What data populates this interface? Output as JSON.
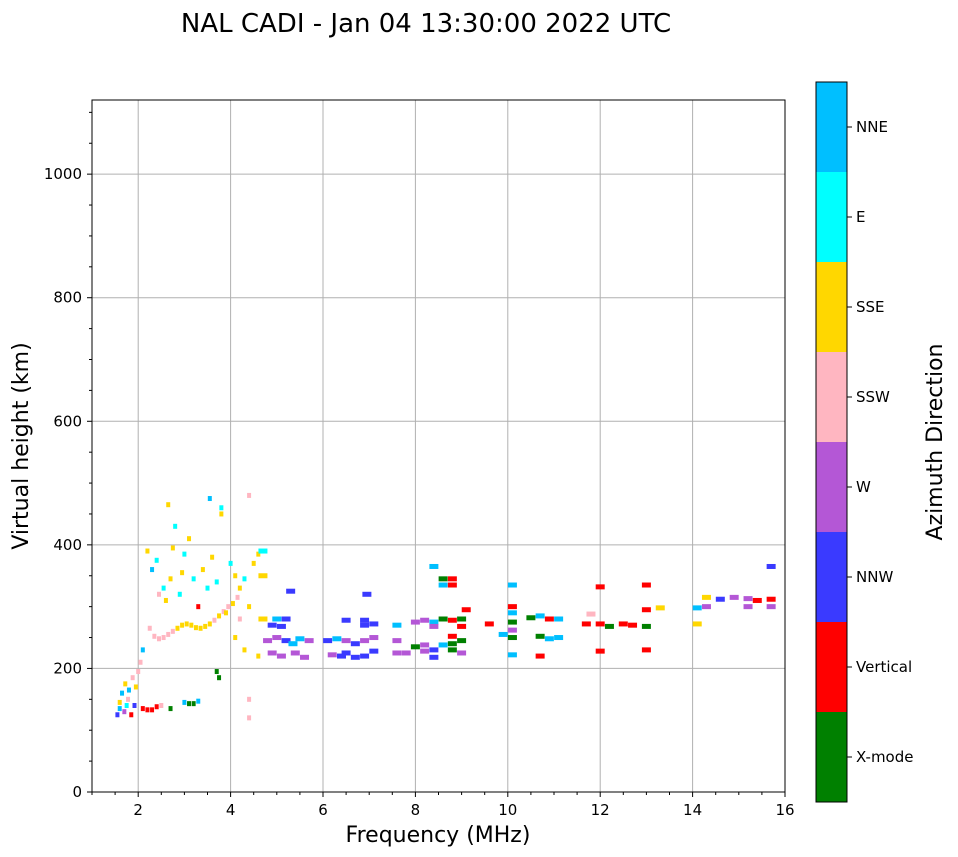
{
  "chart_data": {
    "type": "scatter",
    "title": "NAL CADI - Jan 04 13:30:00 2022 UTC",
    "xlabel": "Frequency (MHz)",
    "ylabel": "Virtual height (km)",
    "xlim": [
      1,
      16
    ],
    "ylim": [
      0,
      1120
    ],
    "xticks": [
      2,
      4,
      6,
      8,
      10,
      12,
      14,
      16
    ],
    "yticks": [
      0,
      200,
      400,
      600,
      800,
      1000
    ],
    "grid": true,
    "colorbar": {
      "label": "Azimuth Direction",
      "categories": [
        {
          "name": "X-mode",
          "color": "#008000"
        },
        {
          "name": "Vertical",
          "color": "#ff0000"
        },
        {
          "name": "NNW",
          "color": "#3a3aff"
        },
        {
          "name": "W",
          "color": "#b457d6"
        },
        {
          "name": "SSW",
          "color": "#ffb6c1"
        },
        {
          "name": "SSE",
          "color": "#ffd700"
        },
        {
          "name": "E",
          "color": "#00ffff"
        },
        {
          "name": "NNE",
          "color": "#00bfff"
        }
      ]
    },
    "points": [
      {
        "f": 1.55,
        "h": 125,
        "c": "NNW"
      },
      {
        "f": 1.6,
        "h": 145,
        "c": "SSE"
      },
      {
        "f": 1.65,
        "h": 160,
        "c": "NNE"
      },
      {
        "f": 1.7,
        "h": 130,
        "c": "W"
      },
      {
        "f": 1.72,
        "h": 175,
        "c": "SSE"
      },
      {
        "f": 1.78,
        "h": 150,
        "c": "SSW"
      },
      {
        "f": 1.8,
        "h": 165,
        "c": "NNE"
      },
      {
        "f": 1.85,
        "h": 125,
        "c": "Vertical"
      },
      {
        "f": 1.88,
        "h": 185,
        "c": "SSW"
      },
      {
        "f": 1.92,
        "h": 140,
        "c": "NNW"
      },
      {
        "f": 1.95,
        "h": 170,
        "c": "SSE"
      },
      {
        "f": 2.0,
        "h": 195,
        "c": "SSW"
      },
      {
        "f": 2.05,
        "h": 210,
        "c": "SSW"
      },
      {
        "f": 2.1,
        "h": 230,
        "c": "NNE"
      },
      {
        "f": 1.6,
        "h": 135,
        "c": "NNE"
      },
      {
        "f": 1.75,
        "h": 140,
        "c": "E"
      },
      {
        "f": 2.1,
        "h": 135,
        "c": "Vertical"
      },
      {
        "f": 2.2,
        "h": 133,
        "c": "Vertical"
      },
      {
        "f": 2.3,
        "h": 133,
        "c": "Vertical"
      },
      {
        "f": 2.4,
        "h": 138,
        "c": "Vertical"
      },
      {
        "f": 2.5,
        "h": 140,
        "c": "SSW"
      },
      {
        "f": 2.7,
        "h": 135,
        "c": "X-mode"
      },
      {
        "f": 3.0,
        "h": 145,
        "c": "NNE"
      },
      {
        "f": 3.1,
        "h": 143,
        "c": "X-mode"
      },
      {
        "f": 3.2,
        "h": 143,
        "c": "X-mode"
      },
      {
        "f": 3.3,
        "h": 147,
        "c": "NNE"
      },
      {
        "f": 3.7,
        "h": 195,
        "c": "X-mode"
      },
      {
        "f": 3.75,
        "h": 185,
        "c": "X-mode"
      },
      {
        "f": 2.25,
        "h": 265,
        "c": "SSW"
      },
      {
        "f": 2.35,
        "h": 252,
        "c": "SSW"
      },
      {
        "f": 2.45,
        "h": 248,
        "c": "SSW"
      },
      {
        "f": 2.55,
        "h": 250,
        "c": "SSW"
      },
      {
        "f": 2.65,
        "h": 255,
        "c": "SSW"
      },
      {
        "f": 2.75,
        "h": 260,
        "c": "SSW"
      },
      {
        "f": 2.85,
        "h": 265,
        "c": "SSE"
      },
      {
        "f": 2.95,
        "h": 270,
        "c": "SSE"
      },
      {
        "f": 3.05,
        "h": 272,
        "c": "SSE"
      },
      {
        "f": 3.15,
        "h": 270,
        "c": "SSE"
      },
      {
        "f": 3.25,
        "h": 266,
        "c": "SSE"
      },
      {
        "f": 3.35,
        "h": 265,
        "c": "SSE"
      },
      {
        "f": 3.45,
        "h": 268,
        "c": "SSE"
      },
      {
        "f": 3.55,
        "h": 272,
        "c": "SSE"
      },
      {
        "f": 3.65,
        "h": 278,
        "c": "SSW"
      },
      {
        "f": 3.75,
        "h": 285,
        "c": "SSE"
      },
      {
        "f": 3.85,
        "h": 292,
        "c": "SSW"
      },
      {
        "f": 3.95,
        "h": 300,
        "c": "SSW"
      },
      {
        "f": 4.05,
        "h": 305,
        "c": "SSE"
      },
      {
        "f": 4.15,
        "h": 315,
        "c": "SSW"
      },
      {
        "f": 4.2,
        "h": 330,
        "c": "SSE"
      },
      {
        "f": 4.3,
        "h": 345,
        "c": "E"
      },
      {
        "f": 2.2,
        "h": 390,
        "c": "SSE"
      },
      {
        "f": 2.3,
        "h": 360,
        "c": "NNE"
      },
      {
        "f": 2.4,
        "h": 375,
        "c": "E"
      },
      {
        "f": 2.45,
        "h": 320,
        "c": "SSW"
      },
      {
        "f": 2.55,
        "h": 330,
        "c": "E"
      },
      {
        "f": 2.6,
        "h": 310,
        "c": "SSE"
      },
      {
        "f": 2.7,
        "h": 345,
        "c": "SSE"
      },
      {
        "f": 2.75,
        "h": 395,
        "c": "SSE"
      },
      {
        "f": 2.8,
        "h": 430,
        "c": "E"
      },
      {
        "f": 2.9,
        "h": 320,
        "c": "E"
      },
      {
        "f": 2.95,
        "h": 355,
        "c": "SSE"
      },
      {
        "f": 3.0,
        "h": 385,
        "c": "E"
      },
      {
        "f": 3.1,
        "h": 410,
        "c": "SSE"
      },
      {
        "f": 3.2,
        "h": 345,
        "c": "E"
      },
      {
        "f": 3.3,
        "h": 300,
        "c": "Vertical"
      },
      {
        "f": 3.4,
        "h": 360,
        "c": "SSE"
      },
      {
        "f": 3.5,
        "h": 330,
        "c": "E"
      },
      {
        "f": 3.6,
        "h": 380,
        "c": "SSE"
      },
      {
        "f": 3.7,
        "h": 340,
        "c": "E"
      },
      {
        "f": 3.8,
        "h": 450,
        "c": "SSE"
      },
      {
        "f": 3.9,
        "h": 290,
        "c": "SSE"
      },
      {
        "f": 4.0,
        "h": 370,
        "c": "E"
      },
      {
        "f": 4.1,
        "h": 350,
        "c": "SSE"
      },
      {
        "f": 4.2,
        "h": 280,
        "c": "SSW"
      },
      {
        "f": 4.4,
        "h": 300,
        "c": "SSE"
      },
      {
        "f": 4.5,
        "h": 370,
        "c": "SSE"
      },
      {
        "f": 4.6,
        "h": 385,
        "c": "SSE"
      },
      {
        "f": 4.7,
        "h": 390,
        "c": "E"
      },
      {
        "f": 4.7,
        "h": 350,
        "c": "SSE"
      },
      {
        "f": 2.65,
        "h": 465,
        "c": "SSE"
      },
      {
        "f": 3.55,
        "h": 475,
        "c": "NNE"
      },
      {
        "f": 4.4,
        "h": 480,
        "c": "SSW"
      },
      {
        "f": 3.8,
        "h": 460,
        "c": "E"
      },
      {
        "f": 4.1,
        "h": 250,
        "c": "SSE"
      },
      {
        "f": 4.3,
        "h": 230,
        "c": "SSE"
      },
      {
        "f": 4.6,
        "h": 220,
        "c": "SSE"
      },
      {
        "f": 4.4,
        "h": 150,
        "c": "SSW"
      },
      {
        "f": 4.4,
        "h": 120,
        "c": "SSW"
      },
      {
        "f": 4.7,
        "h": 280,
        "c": "SSE"
      },
      {
        "f": 4.9,
        "h": 270,
        "c": "NNW"
      },
      {
        "f": 5.0,
        "h": 280,
        "c": "NNE"
      },
      {
        "f": 5.1,
        "h": 268,
        "c": "NNW"
      },
      {
        "f": 5.2,
        "h": 280,
        "c": "NNW"
      },
      {
        "f": 5.3,
        "h": 325,
        "c": "NNW"
      },
      {
        "f": 4.8,
        "h": 245,
        "c": "W"
      },
      {
        "f": 5.0,
        "h": 250,
        "c": "W"
      },
      {
        "f": 5.2,
        "h": 245,
        "c": "NNW"
      },
      {
        "f": 5.35,
        "h": 240,
        "c": "NNE"
      },
      {
        "f": 5.5,
        "h": 248,
        "c": "NNE"
      },
      {
        "f": 5.7,
        "h": 245,
        "c": "W"
      },
      {
        "f": 4.9,
        "h": 225,
        "c": "W"
      },
      {
        "f": 5.1,
        "h": 220,
        "c": "W"
      },
      {
        "f": 5.4,
        "h": 225,
        "c": "W"
      },
      {
        "f": 5.6,
        "h": 218,
        "c": "W"
      },
      {
        "f": 6.1,
        "h": 245,
        "c": "NNW"
      },
      {
        "f": 6.3,
        "h": 248,
        "c": "NNE"
      },
      {
        "f": 6.5,
        "h": 245,
        "c": "W"
      },
      {
        "f": 6.7,
        "h": 240,
        "c": "NNW"
      },
      {
        "f": 6.9,
        "h": 245,
        "c": "W"
      },
      {
        "f": 7.1,
        "h": 250,
        "c": "W"
      },
      {
        "f": 6.5,
        "h": 225,
        "c": "NNW"
      },
      {
        "f": 6.7,
        "h": 218,
        "c": "NNW"
      },
      {
        "f": 6.9,
        "h": 220,
        "c": "NNW"
      },
      {
        "f": 6.2,
        "h": 222,
        "c": "W"
      },
      {
        "f": 6.4,
        "h": 220,
        "c": "NNW"
      },
      {
        "f": 7.1,
        "h": 228,
        "c": "NNW"
      },
      {
        "f": 6.5,
        "h": 278,
        "c": "NNW"
      },
      {
        "f": 6.9,
        "h": 278,
        "c": "NNW"
      },
      {
        "f": 6.9,
        "h": 270,
        "c": "NNW"
      },
      {
        "f": 7.1,
        "h": 272,
        "c": "NNW"
      },
      {
        "f": 6.95,
        "h": 320,
        "c": "NNW"
      },
      {
        "f": 7.6,
        "h": 245,
        "c": "W"
      },
      {
        "f": 7.6,
        "h": 225,
        "c": "W"
      },
      {
        "f": 7.8,
        "h": 225,
        "c": "W"
      },
      {
        "f": 7.6,
        "h": 270,
        "c": "NNE"
      },
      {
        "f": 8.0,
        "h": 275,
        "c": "W"
      },
      {
        "f": 8.2,
        "h": 278,
        "c": "W"
      },
      {
        "f": 8.4,
        "h": 275,
        "c": "NNE"
      },
      {
        "f": 8.6,
        "h": 280,
        "c": "X-mode"
      },
      {
        "f": 8.8,
        "h": 278,
        "c": "Vertical"
      },
      {
        "f": 9.0,
        "h": 280,
        "c": "X-mode"
      },
      {
        "f": 9.0,
        "h": 268,
        "c": "Vertical"
      },
      {
        "f": 8.0,
        "h": 235,
        "c": "X-mode"
      },
      {
        "f": 8.2,
        "h": 238,
        "c": "W"
      },
      {
        "f": 8.4,
        "h": 230,
        "c": "NNW"
      },
      {
        "f": 8.6,
        "h": 238,
        "c": "NNE"
      },
      {
        "f": 8.8,
        "h": 230,
        "c": "X-mode"
      },
      {
        "f": 9.0,
        "h": 225,
        "c": "W"
      },
      {
        "f": 8.4,
        "h": 218,
        "c": "NNW"
      },
      {
        "f": 8.2,
        "h": 228,
        "c": "W"
      },
      {
        "f": 8.8,
        "h": 240,
        "c": "X-mode"
      },
      {
        "f": 9.0,
        "h": 245,
        "c": "X-mode"
      },
      {
        "f": 8.8,
        "h": 252,
        "c": "Vertical"
      },
      {
        "f": 9.1,
        "h": 295,
        "c": "Vertical"
      },
      {
        "f": 8.4,
        "h": 365,
        "c": "NNE"
      },
      {
        "f": 8.6,
        "h": 345,
        "c": "X-mode"
      },
      {
        "f": 8.8,
        "h": 345,
        "c": "Vertical"
      },
      {
        "f": 8.6,
        "h": 335,
        "c": "NNE"
      },
      {
        "f": 8.8,
        "h": 335,
        "c": "Vertical"
      },
      {
        "f": 8.4,
        "h": 268,
        "c": "W"
      },
      {
        "f": 9.6,
        "h": 272,
        "c": "Vertical"
      },
      {
        "f": 9.9,
        "h": 255,
        "c": "NNE"
      },
      {
        "f": 10.1,
        "h": 250,
        "c": "X-mode"
      },
      {
        "f": 10.1,
        "h": 262,
        "c": "W"
      },
      {
        "f": 10.1,
        "h": 275,
        "c": "X-mode"
      },
      {
        "f": 10.1,
        "h": 290,
        "c": "NNE"
      },
      {
        "f": 10.1,
        "h": 300,
        "c": "Vertical"
      },
      {
        "f": 10.1,
        "h": 335,
        "c": "NNE"
      },
      {
        "f": 10.1,
        "h": 222,
        "c": "NNE"
      },
      {
        "f": 10.5,
        "h": 282,
        "c": "X-mode"
      },
      {
        "f": 10.7,
        "h": 285,
        "c": "NNE"
      },
      {
        "f": 10.9,
        "h": 280,
        "c": "Vertical"
      },
      {
        "f": 11.1,
        "h": 280,
        "c": "NNE"
      },
      {
        "f": 10.7,
        "h": 252,
        "c": "X-mode"
      },
      {
        "f": 10.9,
        "h": 248,
        "c": "NNE"
      },
      {
        "f": 11.1,
        "h": 250,
        "c": "NNE"
      },
      {
        "f": 10.7,
        "h": 220,
        "c": "Vertical"
      },
      {
        "f": 11.7,
        "h": 272,
        "c": "Vertical"
      },
      {
        "f": 11.8,
        "h": 288,
        "c": "SSW"
      },
      {
        "f": 12.0,
        "h": 272,
        "c": "Vertical"
      },
      {
        "f": 12.2,
        "h": 268,
        "c": "X-mode"
      },
      {
        "f": 12.5,
        "h": 272,
        "c": "Vertical"
      },
      {
        "f": 12.7,
        "h": 270,
        "c": "Vertical"
      },
      {
        "f": 12.0,
        "h": 332,
        "c": "Vertical"
      },
      {
        "f": 12.0,
        "h": 228,
        "c": "Vertical"
      },
      {
        "f": 13.0,
        "h": 295,
        "c": "Vertical"
      },
      {
        "f": 13.3,
        "h": 298,
        "c": "SSE"
      },
      {
        "f": 13.0,
        "h": 268,
        "c": "X-mode"
      },
      {
        "f": 13.0,
        "h": 230,
        "c": "Vertical"
      },
      {
        "f": 13.0,
        "h": 335,
        "c": "Vertical"
      },
      {
        "f": 14.1,
        "h": 298,
        "c": "NNE"
      },
      {
        "f": 14.3,
        "h": 300,
        "c": "W"
      },
      {
        "f": 14.1,
        "h": 272,
        "c": "SSE"
      },
      {
        "f": 14.3,
        "h": 315,
        "c": "SSE"
      },
      {
        "f": 14.6,
        "h": 312,
        "c": "NNW"
      },
      {
        "f": 14.9,
        "h": 315,
        "c": "W"
      },
      {
        "f": 15.2,
        "h": 300,
        "c": "W"
      },
      {
        "f": 15.4,
        "h": 310,
        "c": "Vertical"
      },
      {
        "f": 15.7,
        "h": 300,
        "c": "W"
      },
      {
        "f": 15.7,
        "h": 312,
        "c": "Vertical"
      },
      {
        "f": 15.2,
        "h": 313,
        "c": "W"
      },
      {
        "f": 15.7,
        "h": 365,
        "c": "NNW"
      }
    ]
  }
}
